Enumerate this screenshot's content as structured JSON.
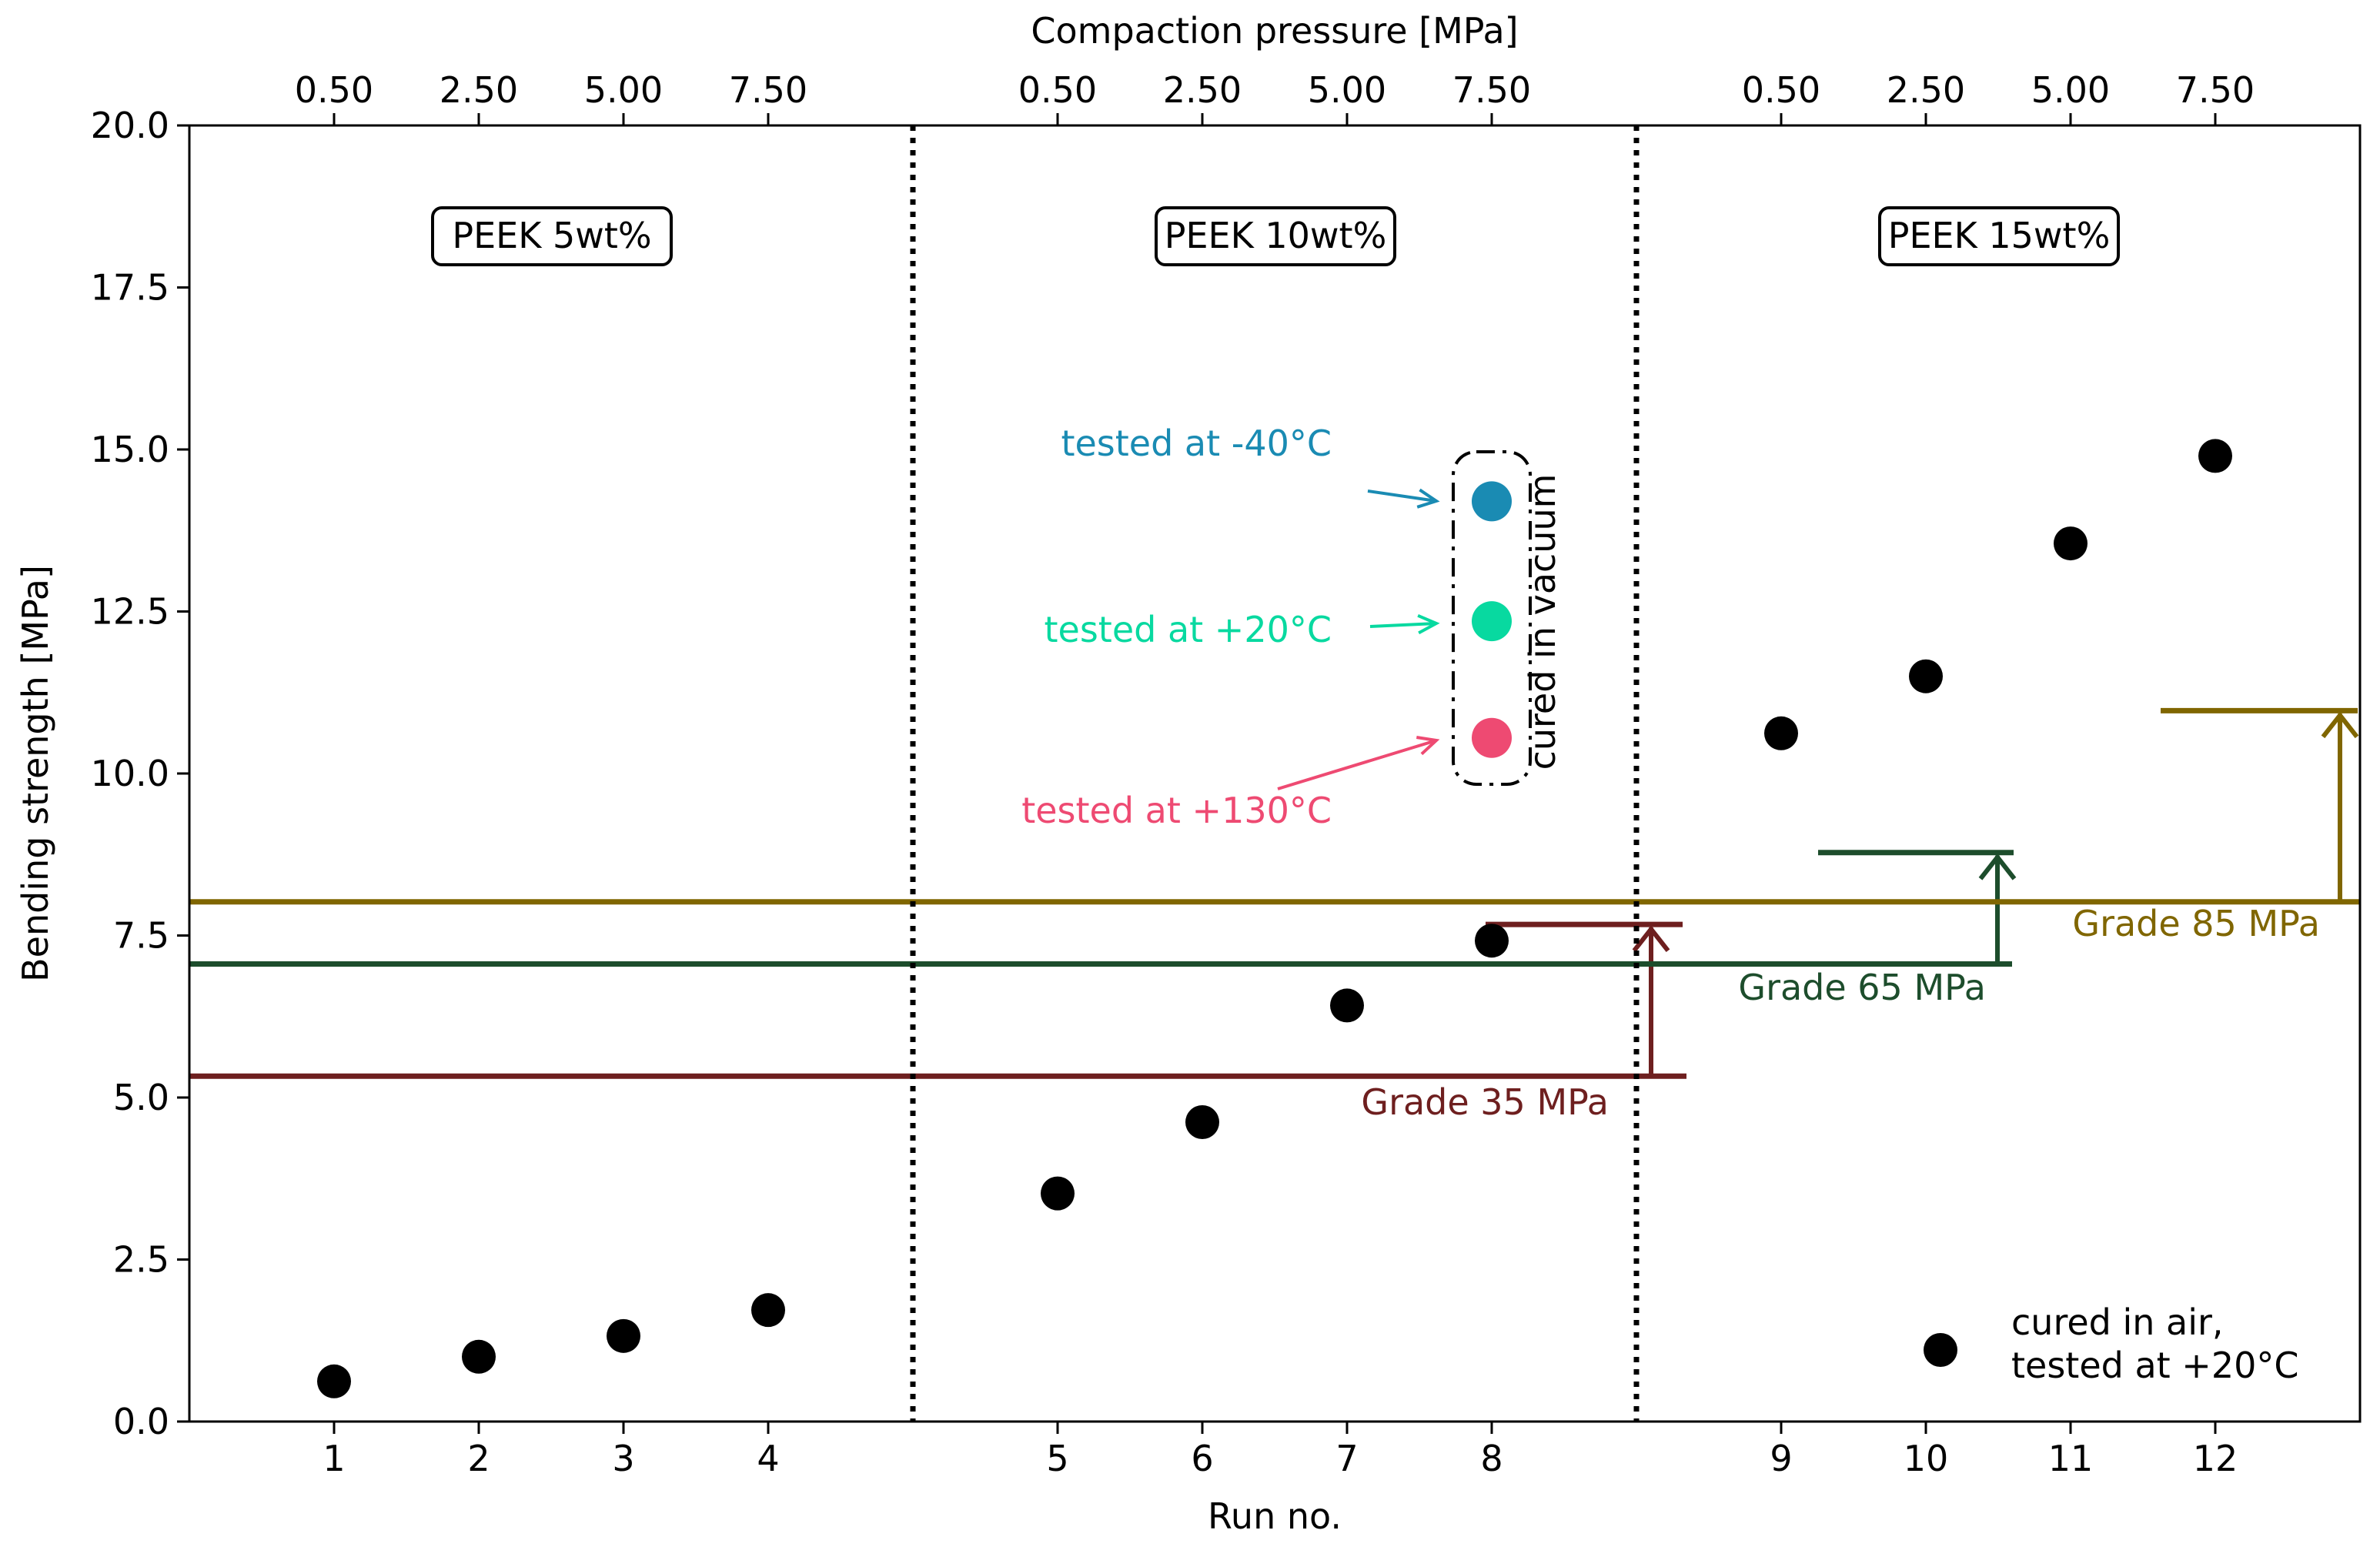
{
  "chart_data": {
    "type": "scatter",
    "xlabel": "Run no.",
    "ylabel": "Bending strength [MPa]",
    "top_xlabel": "Compaction pressure [MPa]",
    "ylim": [
      0,
      20
    ],
    "yticks": [
      "0.0",
      "2.5",
      "5.0",
      "7.5",
      "10.0",
      "12.5",
      "15.0",
      "17.5",
      "20.0"
    ],
    "x_ticks": [
      "1",
      "2",
      "3",
      "4",
      "5",
      "6",
      "7",
      "8",
      "9",
      "10",
      "11",
      "12"
    ],
    "top_ticks": [
      "0.50",
      "2.50",
      "5.00",
      "7.50",
      "0.50",
      "2.50",
      "5.00",
      "7.50",
      "0.50",
      "2.50",
      "5.00",
      "7.50"
    ],
    "groups": [
      {
        "label": "PEEK 5wt%"
      },
      {
        "label": "PEEK 10wt%"
      },
      {
        "label": "PEEK 15wt%"
      }
    ],
    "series": [
      {
        "name": "cured in air,\ntested at +20°C",
        "legend_lines": [
          "cured in air,",
          "tested at +20°C"
        ],
        "color": "#000000",
        "points": [
          {
            "run": 1,
            "y": 0.62
          },
          {
            "run": 2,
            "y": 1.0
          },
          {
            "run": 3,
            "y": 1.32
          },
          {
            "run": 4,
            "y": 1.72
          },
          {
            "run": 5,
            "y": 3.52
          },
          {
            "run": 6,
            "y": 4.62
          },
          {
            "run": 7,
            "y": 6.42
          },
          {
            "run": 8,
            "y": 7.42
          },
          {
            "run": 9,
            "y": 10.62
          },
          {
            "run": 10,
            "y": 11.5
          },
          {
            "run": 11,
            "y": 13.55
          },
          {
            "run": 12,
            "y": 14.9
          }
        ]
      }
    ],
    "vacuum_group": {
      "label": "cured in vacuum",
      "points": [
        {
          "run": 8,
          "y": 14.2,
          "label": "tested at -40°C",
          "color": "#1a8bb3"
        },
        {
          "run": 8,
          "y": 12.35,
          "label": "tested at +20°C",
          "color": "#08d9a0"
        },
        {
          "run": 8,
          "y": 10.55,
          "label": "tested at +130°C",
          "color": "#ee4a72"
        }
      ]
    },
    "grades": [
      {
        "label": "Grade 35 MPa",
        "color": "#6e1f1f",
        "y_base": 5.33,
        "y_target": 7.67
      },
      {
        "label": "Grade 65 MPa",
        "color": "#1d4d2c",
        "y_base": 7.06,
        "y_target": 8.78
      },
      {
        "label": "Grade 85 MPa",
        "color": "#806600",
        "y_base": 8.02,
        "y_target": 10.97
      }
    ]
  }
}
